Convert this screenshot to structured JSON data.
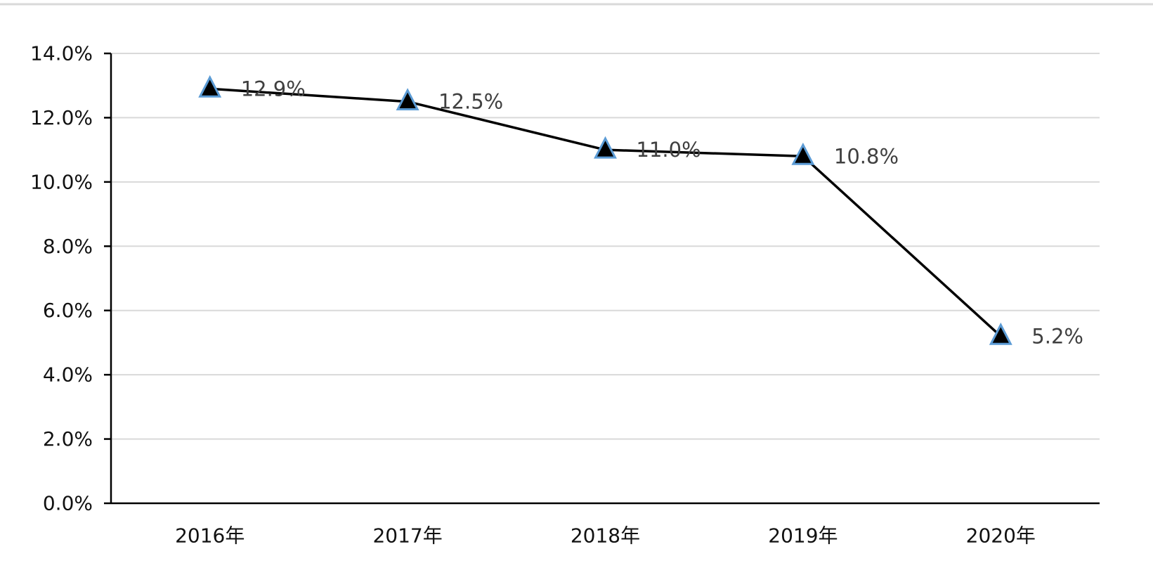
{
  "chart_data": {
    "type": "line",
    "title": "",
    "xlabel": "",
    "ylabel": "",
    "categories": [
      "2016年",
      "2017年",
      "2018年",
      "2019年",
      "2020年"
    ],
    "series": [
      {
        "values": [
          12.9,
          12.5,
          11.0,
          10.8,
          5.2
        ],
        "data_labels": [
          "12.9%",
          "12.5%",
          "11.0%",
          "10.8%",
          "5.2%"
        ],
        "marker": "triangle",
        "color": "#000000",
        "marker_outline_color": "#5b9bd5"
      }
    ],
    "ylim": [
      0,
      14
    ],
    "y_ticks": [
      0,
      2,
      4,
      6,
      8,
      10,
      12,
      14
    ],
    "y_tick_labels": [
      "0.0%",
      "2.0%",
      "4.0%",
      "6.0%",
      "8.0%",
      "10.0%",
      "12.0%",
      "14.0%"
    ],
    "grid": true,
    "legend": "none",
    "colors": {
      "gridline": "#d9d9d9",
      "axis": "#000000",
      "data_label": "#404040"
    }
  }
}
